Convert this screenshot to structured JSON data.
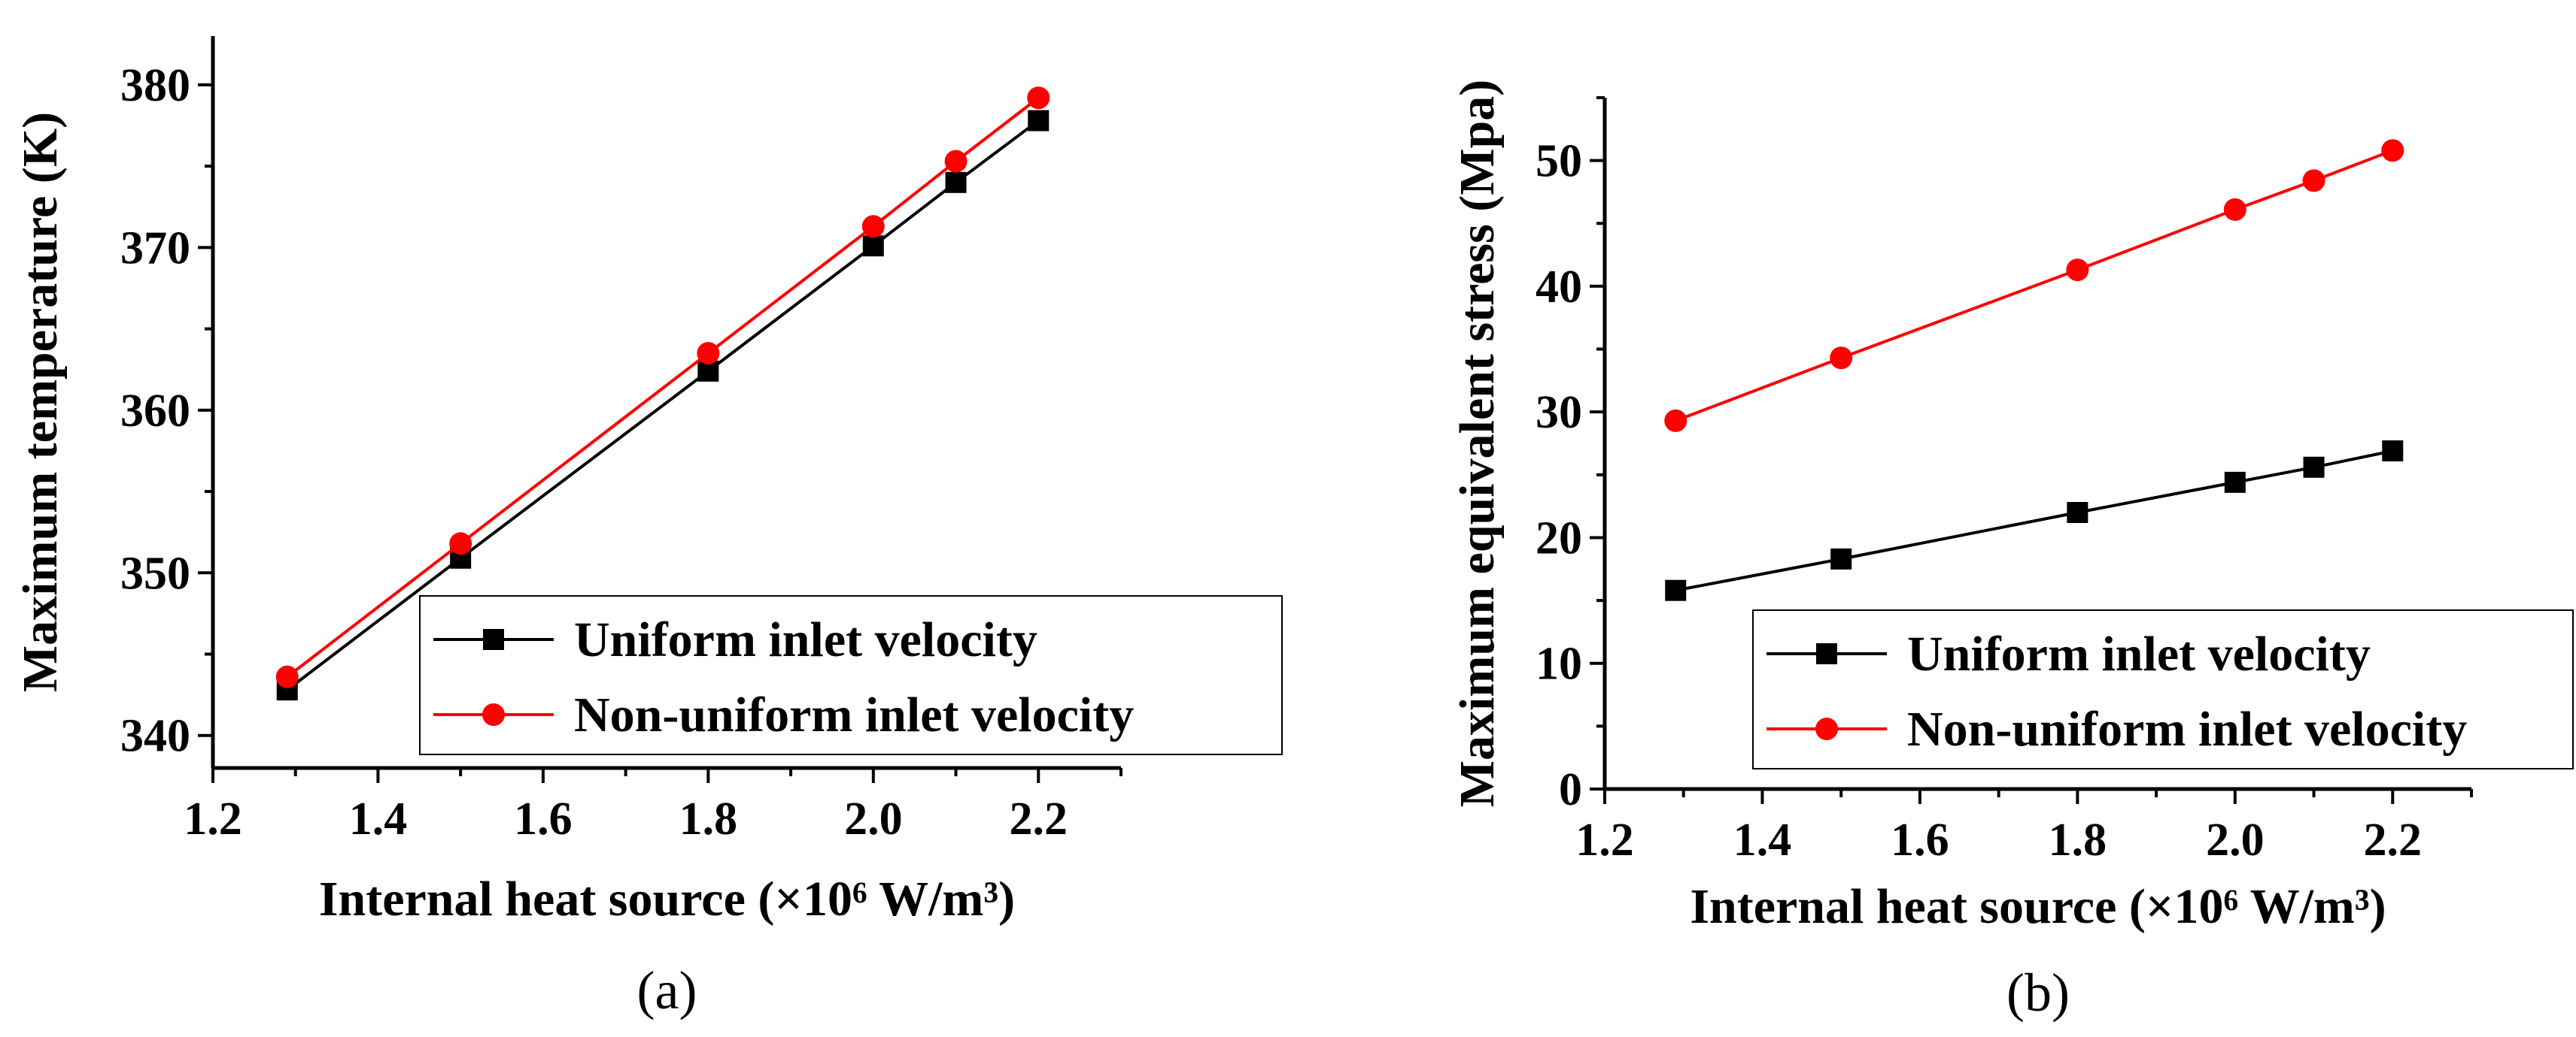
{
  "chart_data": [
    {
      "type": "line",
      "panel_label": "(a)",
      "xlabel": "Internal heat source (×10⁶ W/m³)",
      "ylabel": "Maximum temperature (K)",
      "xlim": [
        1.2,
        2.3
      ],
      "ylim": [
        338,
        383
      ],
      "xticks": [
        "1.2",
        "1.4",
        "1.6",
        "1.8",
        "2.0",
        "2.2"
      ],
      "xtick_values": [
        1.2,
        1.4,
        1.6,
        1.8,
        2.0,
        2.2
      ],
      "yticks": [
        "340",
        "350",
        "360",
        "370",
        "380"
      ],
      "ytick_values": [
        340,
        350,
        360,
        370,
        380
      ],
      "x": [
        1.29,
        1.5,
        1.8,
        2.0,
        2.1,
        2.2
      ],
      "grid": false,
      "legend_position": "bottom-right",
      "series": [
        {
          "name": "Uniform inlet velocity",
          "color": "#000000",
          "marker": "square",
          "values": [
            342.8,
            350.9,
            362.4,
            370.1,
            374.0,
            377.8
          ]
        },
        {
          "name": "Non-uniform inlet velocity",
          "color": "#ff0000",
          "marker": "circle",
          "values": [
            343.6,
            351.8,
            363.5,
            371.3,
            375.3,
            379.2
          ]
        }
      ]
    },
    {
      "type": "line",
      "panel_label": "(b)",
      "xlabel": "Internal heat source (×10⁶ W/m³)",
      "ylabel": "Maximum equivalent stress (Mpa)",
      "xlim": [
        1.2,
        2.3
      ],
      "ylim": [
        0,
        55
      ],
      "xticks": [
        "1.2",
        "1.4",
        "1.6",
        "1.8",
        "2.0",
        "2.2"
      ],
      "xtick_values": [
        1.2,
        1.4,
        1.6,
        1.8,
        2.0,
        2.2
      ],
      "yticks": [
        "0",
        "10",
        "20",
        "30",
        "40",
        "50"
      ],
      "ytick_values": [
        0,
        10,
        20,
        30,
        40,
        50
      ],
      "x": [
        1.29,
        1.5,
        1.8,
        2.0,
        2.1,
        2.2
      ],
      "grid": false,
      "legend_position": "bottom-right",
      "series": [
        {
          "name": "Uniform inlet velocity",
          "color": "#000000",
          "marker": "square",
          "values": [
            15.8,
            18.3,
            22.0,
            24.4,
            25.6,
            26.9
          ]
        },
        {
          "name": "Non-uniform inlet velocity",
          "color": "#ff0000",
          "marker": "circle",
          "values": [
            29.3,
            34.3,
            41.3,
            46.1,
            48.4,
            50.8
          ]
        }
      ]
    }
  ]
}
